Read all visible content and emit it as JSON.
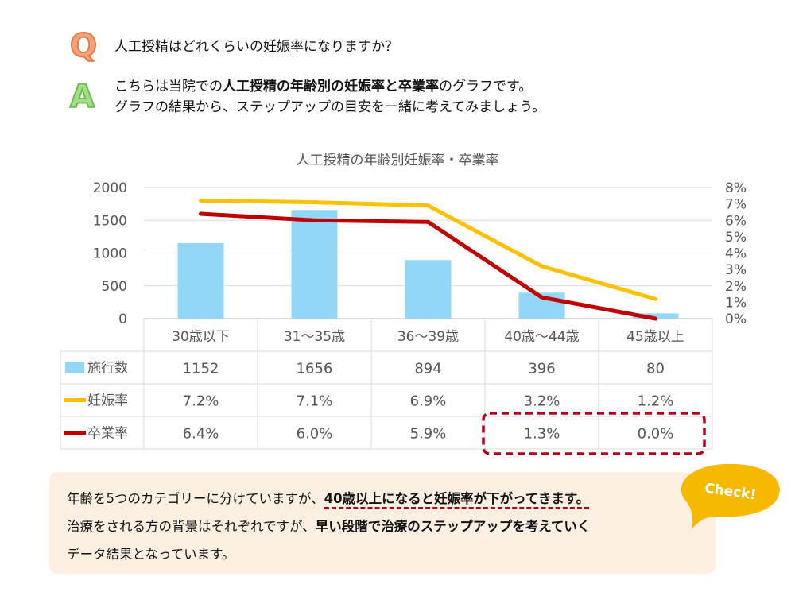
{
  "qa": {
    "q_letter": "Q",
    "q_text": "人工授精はどれくらいの妊娠率になりますか？",
    "a_letter": "A",
    "a_line1_pre": "こちらは当院での",
    "a_line1_bold": "人工授精の年齢別の妊娠率と卒業率",
    "a_line1_post": "のグラフです。",
    "a_line2": "グラフの結果から、ステップアップの目安を一緒に考えてみましょう。"
  },
  "chart_data": {
    "type": "bar",
    "title": "人工授精の年齢別妊娠率・卒業率",
    "categories": [
      "30歳以下",
      "31～35歳",
      "36～39歳",
      "40歳～44歳",
      "45歳以上"
    ],
    "y_left": {
      "range": [
        0,
        2000
      ],
      "ticks": [
        "0",
        "500",
        "1000",
        "1500",
        "2000"
      ]
    },
    "y_right": {
      "range": [
        0,
        8
      ],
      "ticks": [
        "0%",
        "1%",
        "2%",
        "3%",
        "4%",
        "5%",
        "6%",
        "7%",
        "8%"
      ]
    },
    "grid": true,
    "series": [
      {
        "name": "施行数",
        "type": "bar",
        "axis": "left",
        "color": "#92d7f5",
        "values": [
          1152,
          1656,
          894,
          396,
          80
        ],
        "labels": [
          "1152",
          "1656",
          "894",
          "396",
          "80"
        ]
      },
      {
        "name": "妊娠率",
        "type": "line",
        "axis": "right",
        "color": "#ffc000",
        "values": [
          7.2,
          7.1,
          6.9,
          3.2,
          1.2
        ],
        "labels": [
          "7.2%",
          "7.1%",
          "6.9%",
          "3.2%",
          "1.2%"
        ]
      },
      {
        "name": "卒業率",
        "type": "line",
        "axis": "right",
        "color": "#c00000",
        "values": [
          6.4,
          6.0,
          5.9,
          1.3,
          0.0
        ],
        "labels": [
          "6.4%",
          "6.0%",
          "5.9%",
          "1.3%",
          "0.0%"
        ]
      }
    ],
    "highlight": {
      "series": "卒業率",
      "categories": [
        "40歳～44歳",
        "45歳以上"
      ],
      "color": "#b00020"
    }
  },
  "note": {
    "line1_pre": "年齢を5つのカテゴリーに分けていますが、",
    "line1_bold": "40歳以上になると妊娠率が下がってきます。",
    "line2_pre": "治療をされる方の背景はそれぞれですが、",
    "line2_bold": "早い段階で治療のステップアップを考えていく",
    "line3": "データ結果となっています。",
    "bubble_color": "#f7b800",
    "check_label": "Check!"
  }
}
